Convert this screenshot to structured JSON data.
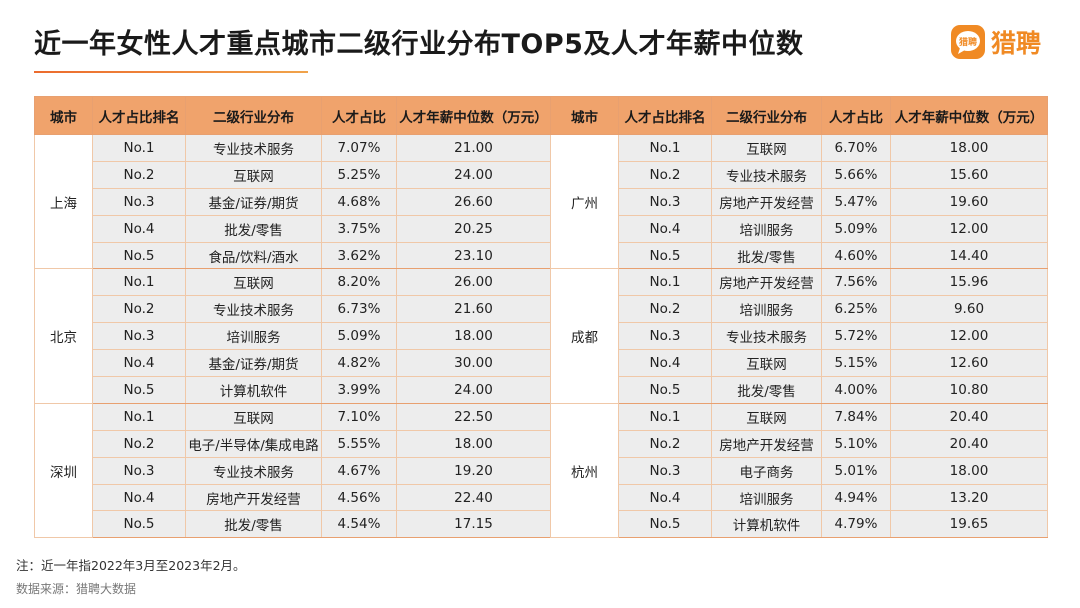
{
  "title": "近一年女性人才重点城市二级行业分布TOP5及人才年薪中位数",
  "logo": {
    "badge": "猎聘",
    "text": "猎聘"
  },
  "colors": {
    "accent": "#f08a24",
    "header": "#f0a36c",
    "cell": "#ededed"
  },
  "chart_data": {
    "type": "table",
    "title": "近一年女性人才重点城市二级行业分布TOP5及人才年薪中位数",
    "columns": [
      "城市",
      "人才占比排名",
      "二级行业分布",
      "人才占比",
      "人才年薪中位数（万元）"
    ],
    "left": [
      {
        "city": "上海",
        "rows": [
          [
            "No.1",
            "专业技术服务",
            "7.07%",
            "21.00"
          ],
          [
            "No.2",
            "互联网",
            "5.25%",
            "24.00"
          ],
          [
            "No.3",
            "基金/证券/期货",
            "4.68%",
            "26.60"
          ],
          [
            "No.4",
            "批发/零售",
            "3.75%",
            "20.25"
          ],
          [
            "No.5",
            "食品/饮料/酒水",
            "3.62%",
            "23.10"
          ]
        ]
      },
      {
        "city": "北京",
        "rows": [
          [
            "No.1",
            "互联网",
            "8.20%",
            "26.00"
          ],
          [
            "No.2",
            "专业技术服务",
            "6.73%",
            "21.60"
          ],
          [
            "No.3",
            "培训服务",
            "5.09%",
            "18.00"
          ],
          [
            "No.4",
            "基金/证券/期货",
            "4.82%",
            "30.00"
          ],
          [
            "No.5",
            "计算机软件",
            "3.99%",
            "24.00"
          ]
        ]
      },
      {
        "city": "深圳",
        "rows": [
          [
            "No.1",
            "互联网",
            "7.10%",
            "22.50"
          ],
          [
            "No.2",
            "电子/半导体/集成电路",
            "5.55%",
            "18.00"
          ],
          [
            "No.3",
            "专业技术服务",
            "4.67%",
            "19.20"
          ],
          [
            "No.4",
            "房地产开发经营",
            "4.56%",
            "22.40"
          ],
          [
            "No.5",
            "批发/零售",
            "4.54%",
            "17.15"
          ]
        ]
      }
    ],
    "right": [
      {
        "city": "广州",
        "rows": [
          [
            "No.1",
            "互联网",
            "6.70%",
            "18.00"
          ],
          [
            "No.2",
            "专业技术服务",
            "5.66%",
            "15.60"
          ],
          [
            "No.3",
            "房地产开发经营",
            "5.47%",
            "19.60"
          ],
          [
            "No.4",
            "培训服务",
            "5.09%",
            "12.00"
          ],
          [
            "No.5",
            "批发/零售",
            "4.60%",
            "14.40"
          ]
        ]
      },
      {
        "city": "成都",
        "rows": [
          [
            "No.1",
            "房地产开发经营",
            "7.56%",
            "15.96"
          ],
          [
            "No.2",
            "培训服务",
            "6.25%",
            "9.60"
          ],
          [
            "No.3",
            "专业技术服务",
            "5.72%",
            "12.00"
          ],
          [
            "No.4",
            "互联网",
            "5.15%",
            "12.60"
          ],
          [
            "No.5",
            "批发/零售",
            "4.00%",
            "10.80"
          ]
        ]
      },
      {
        "city": "杭州",
        "rows": [
          [
            "No.1",
            "互联网",
            "7.84%",
            "20.40"
          ],
          [
            "No.2",
            "房地产开发经营",
            "5.10%",
            "20.40"
          ],
          [
            "No.3",
            "电子商务",
            "5.01%",
            "18.00"
          ],
          [
            "No.4",
            "培训服务",
            "4.94%",
            "13.20"
          ],
          [
            "No.5",
            "计算机软件",
            "4.79%",
            "19.65"
          ]
        ]
      }
    ]
  },
  "note": "注：近一年指2022年3月至2023年2月。",
  "source": "数据来源：猎聘大数据"
}
